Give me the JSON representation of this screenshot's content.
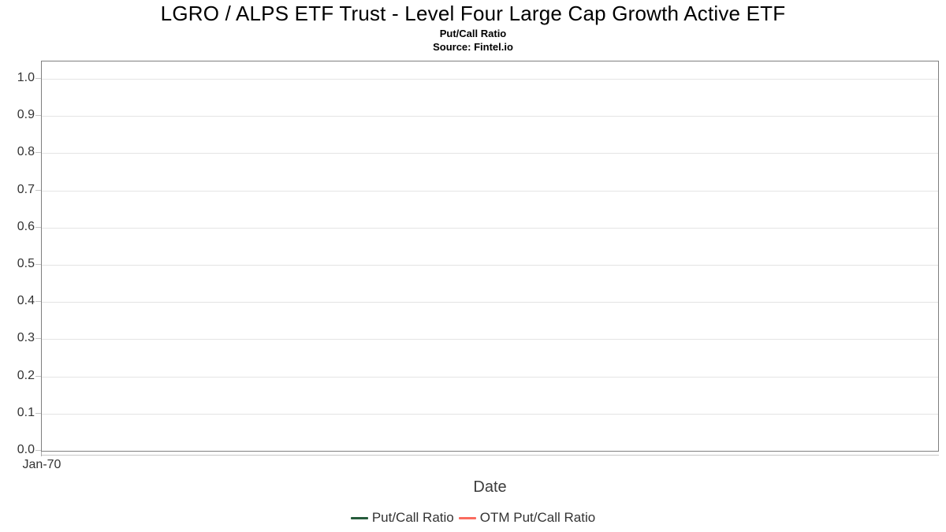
{
  "chart_data": {
    "type": "line",
    "title": "LGRO / ALPS ETF Trust - Level Four Large Cap Growth Active ETF",
    "subtitle": "Put/Call Ratio",
    "source": "Source: Fintel.io",
    "xlabel": "Date",
    "ylabel": "",
    "x_ticks": [
      "Jan-70"
    ],
    "y_ticks": [
      "1.0",
      "0.9",
      "0.8",
      "0.7",
      "0.6",
      "0.5",
      "0.4",
      "0.3",
      "0.2",
      "0.1",
      "0.0"
    ],
    "ylim": [
      0.0,
      1.048
    ],
    "grid": true,
    "legend_position": "bottom",
    "series": [
      {
        "name": "Put/Call Ratio",
        "color": "#265c3b",
        "values": []
      },
      {
        "name": "OTM Put/Call Ratio",
        "color": "#fa6b5f",
        "values": []
      }
    ],
    "note_empty": "chart has no plotted data points"
  },
  "colors": {
    "plot_border": "#7f7f7f",
    "gridline": "#e4e4e4",
    "tick": "#c4c4c4",
    "axis_text": "#333333",
    "title_text": "#000000",
    "series_put_call": "#265c3b",
    "series_otm_put_call": "#fa6b5f"
  }
}
